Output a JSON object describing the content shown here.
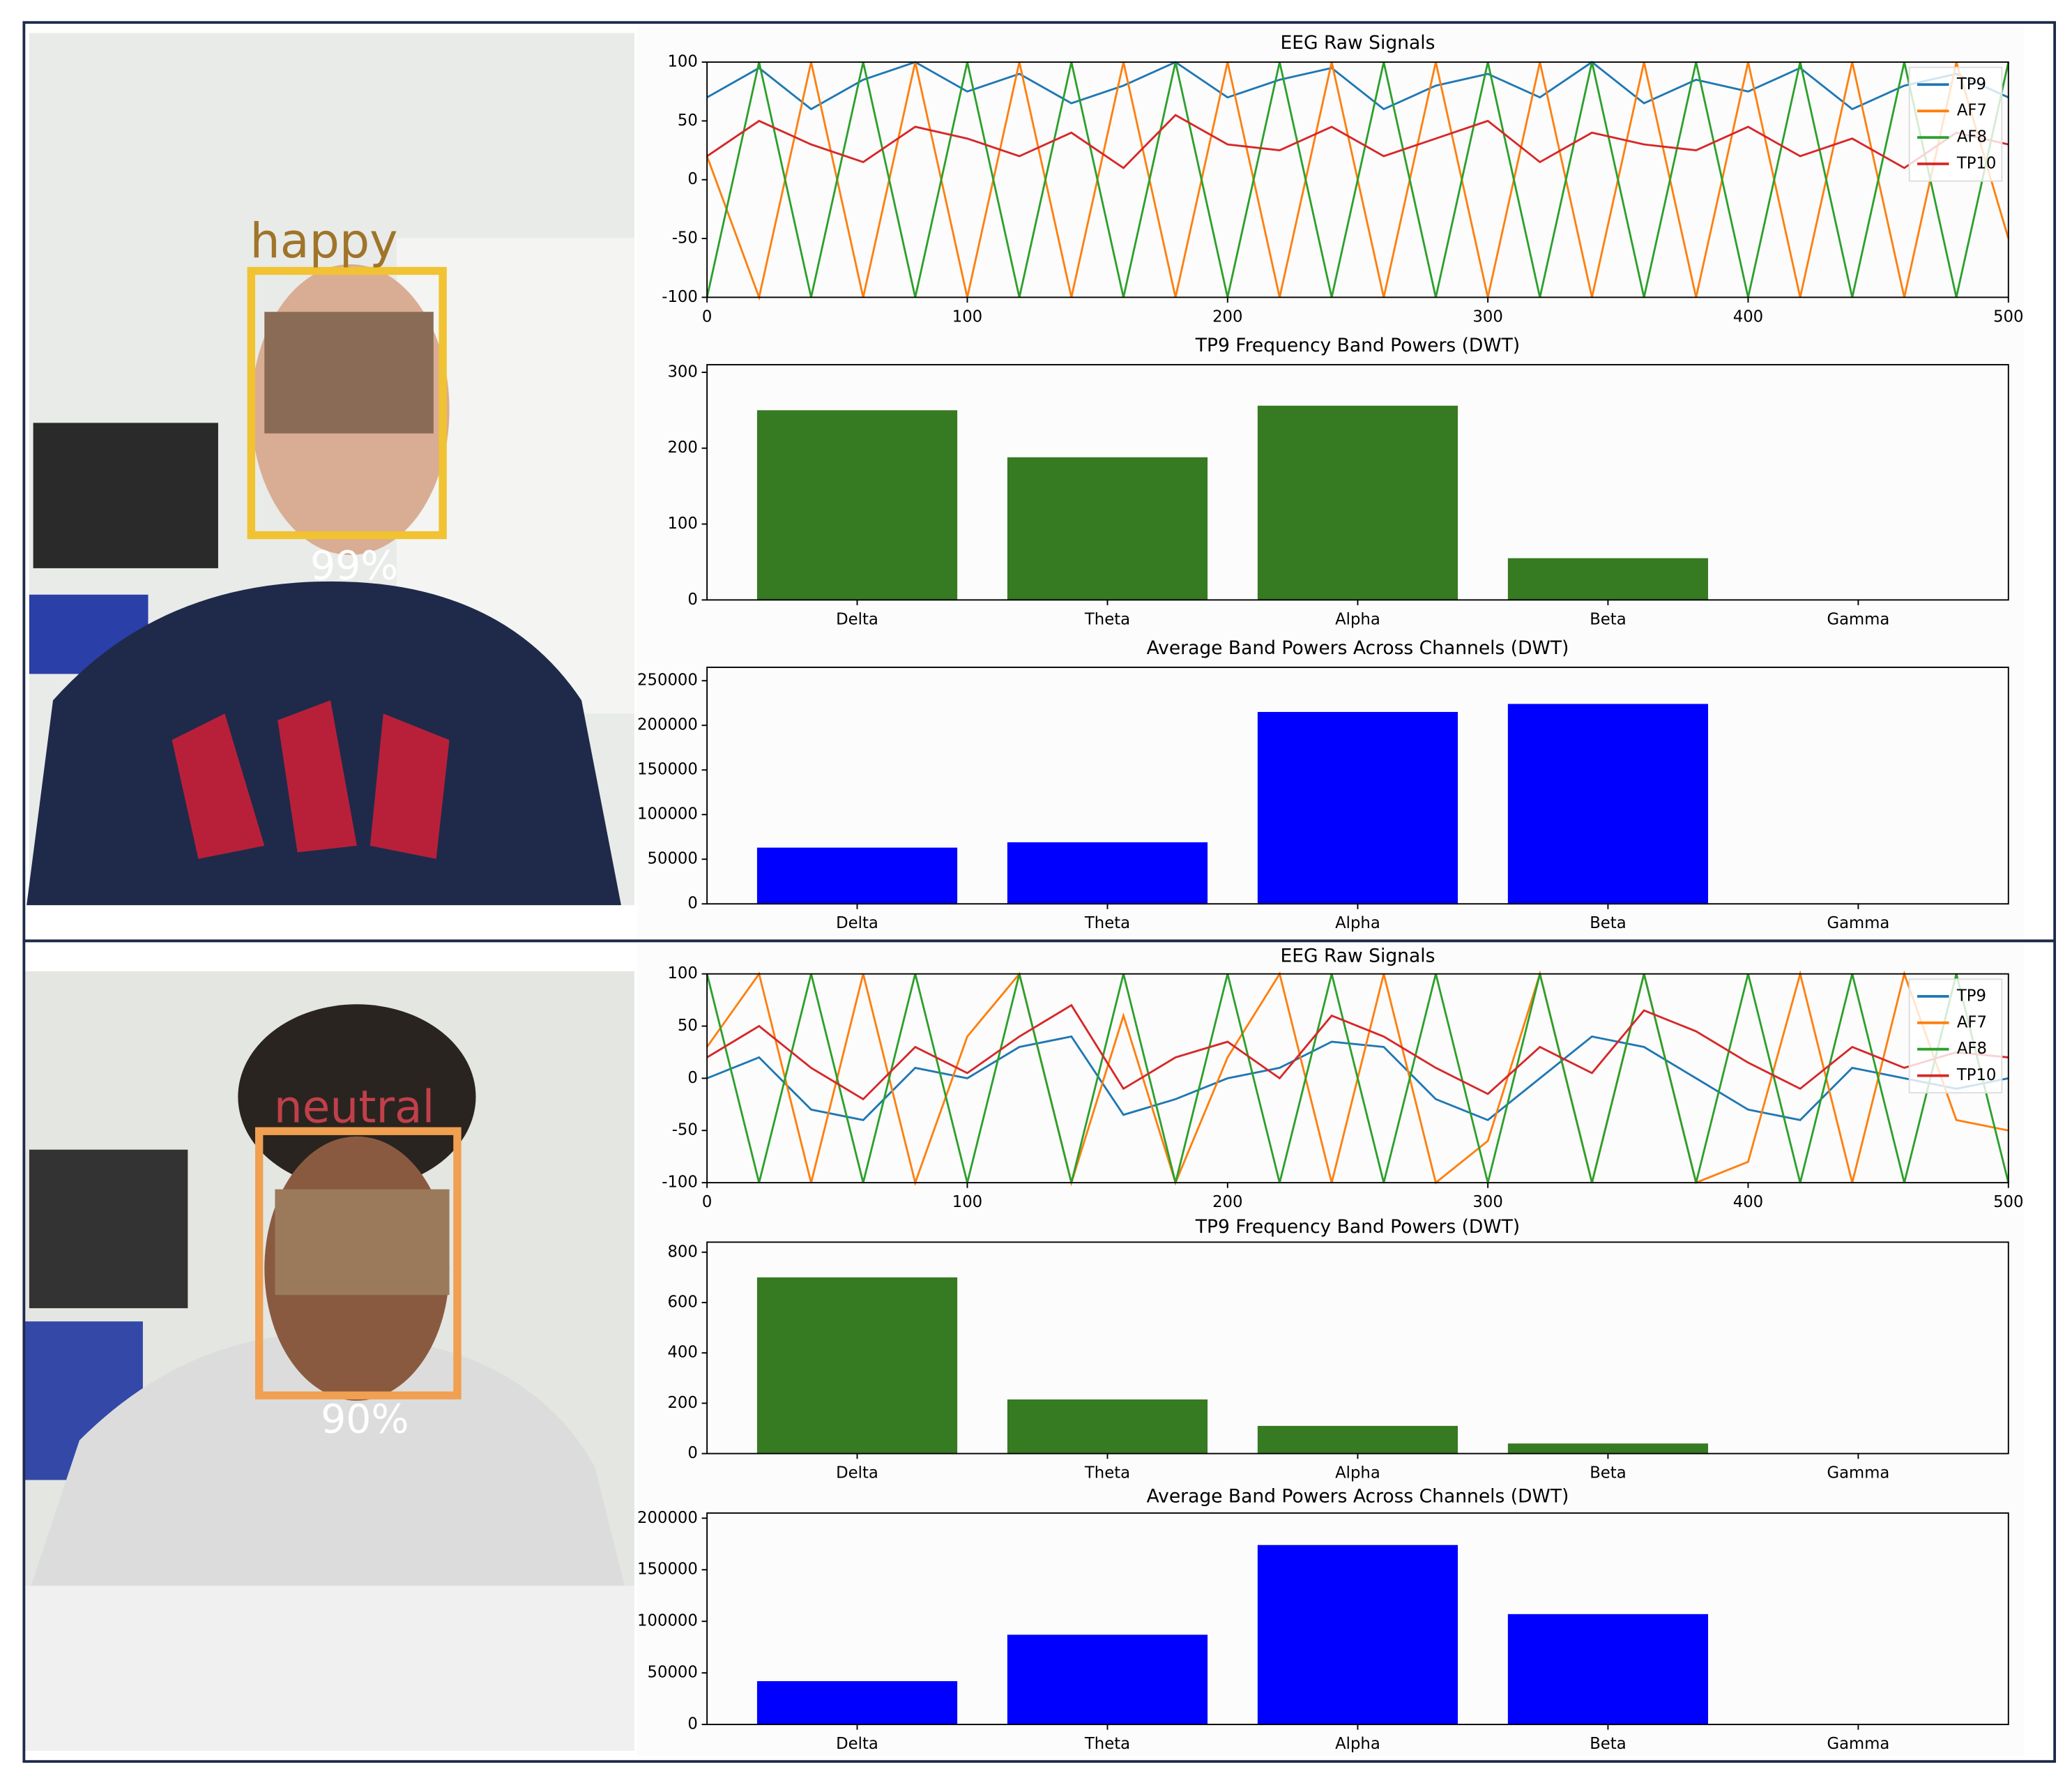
{
  "faces": [
    {
      "emotion": "happy",
      "confidence": "99%"
    },
    {
      "emotion": "neutral",
      "confidence": "90%"
    }
  ],
  "chart_data": [
    {
      "type": "line",
      "title": "EEG Raw Signals",
      "legend": "upper right",
      "xlim": [
        0,
        500
      ],
      "xticks": [
        0,
        100,
        200,
        300,
        400,
        500
      ],
      "ylim": [
        -100,
        100
      ],
      "yticks": [
        -100,
        -50,
        0,
        50,
        100
      ],
      "x": [
        0,
        20,
        40,
        60,
        80,
        100,
        120,
        140,
        160,
        180,
        200,
        220,
        240,
        260,
        280,
        300,
        320,
        340,
        360,
        380,
        400,
        420,
        440,
        460,
        480,
        500
      ],
      "series": [
        {
          "name": "TP9",
          "color": "#1f77b4",
          "values": [
            70,
            95,
            60,
            85,
            100,
            75,
            90,
            65,
            80,
            100,
            70,
            85,
            95,
            60,
            80,
            90,
            70,
            100,
            65,
            85,
            75,
            95,
            60,
            80,
            90,
            70
          ]
        },
        {
          "name": "AF7",
          "color": "#ff7f0e",
          "values": [
            20,
            -100,
            100,
            -100,
            100,
            -100,
            100,
            -100,
            100,
            -100,
            100,
            -100,
            100,
            -100,
            100,
            -100,
            100,
            -100,
            100,
            -100,
            100,
            -100,
            100,
            -100,
            100,
            -50
          ]
        },
        {
          "name": "AF8",
          "color": "#2ca02c",
          "values": [
            -100,
            100,
            -100,
            100,
            -100,
            100,
            -100,
            100,
            -100,
            100,
            -100,
            100,
            -100,
            100,
            -100,
            100,
            -100,
            100,
            -100,
            100,
            -100,
            100,
            -100,
            100,
            -100,
            100
          ]
        },
        {
          "name": "TP10",
          "color": "#d62728",
          "values": [
            20,
            50,
            30,
            15,
            45,
            35,
            20,
            40,
            10,
            55,
            30,
            25,
            45,
            20,
            35,
            50,
            15,
            40,
            30,
            25,
            45,
            20,
            35,
            10,
            40,
            30
          ]
        }
      ]
    },
    {
      "type": "bar",
      "title": "TP9 Frequency Band Powers (DWT)",
      "color": "#367a22",
      "categories": [
        "Delta",
        "Theta",
        "Alpha",
        "Beta",
        "Gamma"
      ],
      "values": [
        250,
        188,
        256,
        55,
        0
      ],
      "ylim": [
        0,
        310
      ],
      "yticks": [
        0,
        100,
        200,
        300
      ]
    },
    {
      "type": "bar",
      "title": "Average Band Powers Across Channels (DWT)",
      "color": "#0000ff",
      "categories": [
        "Delta",
        "Theta",
        "Alpha",
        "Beta",
        "Gamma"
      ],
      "values": [
        63000,
        69000,
        215000,
        224000,
        0
      ],
      "ylim": [
        0,
        265000
      ],
      "yticks": [
        0,
        50000,
        100000,
        150000,
        200000,
        250000
      ]
    },
    {
      "type": "line",
      "title": "EEG Raw Signals",
      "legend": "upper right",
      "xlim": [
        0,
        500
      ],
      "xticks": [
        0,
        100,
        200,
        300,
        400,
        500
      ],
      "ylim": [
        -100,
        100
      ],
      "yticks": [
        -100,
        -50,
        0,
        50,
        100
      ],
      "x": [
        0,
        20,
        40,
        60,
        80,
        100,
        120,
        140,
        160,
        180,
        200,
        220,
        240,
        260,
        280,
        300,
        320,
        340,
        360,
        380,
        400,
        420,
        440,
        460,
        480,
        500
      ],
      "series": [
        {
          "name": "TP9",
          "color": "#1f77b4",
          "values": [
            0,
            20,
            -30,
            -40,
            10,
            0,
            30,
            40,
            -35,
            -20,
            0,
            10,
            35,
            30,
            -20,
            -40,
            0,
            40,
            30,
            0,
            -30,
            -40,
            10,
            0,
            -10,
            0
          ]
        },
        {
          "name": "AF7",
          "color": "#ff7f0e",
          "values": [
            30,
            100,
            -100,
            100,
            -100,
            40,
            100,
            -100,
            60,
            -100,
            20,
            100,
            -100,
            100,
            -100,
            -60,
            100,
            -100,
            100,
            -100,
            -80,
            100,
            -100,
            100,
            -40,
            -50
          ]
        },
        {
          "name": "AF8",
          "color": "#2ca02c",
          "values": [
            100,
            -100,
            100,
            -100,
            100,
            -100,
            100,
            -100,
            100,
            -100,
            100,
            -100,
            100,
            -100,
            100,
            -100,
            100,
            -100,
            100,
            -100,
            100,
            -100,
            100,
            -100,
            100,
            -100
          ]
        },
        {
          "name": "TP10",
          "color": "#d62728",
          "values": [
            20,
            50,
            10,
            -20,
            30,
            5,
            40,
            70,
            -10,
            20,
            35,
            0,
            60,
            40,
            10,
            -15,
            30,
            5,
            65,
            45,
            15,
            -10,
            30,
            10,
            25,
            20
          ]
        }
      ]
    },
    {
      "type": "bar",
      "title": "TP9 Frequency Band Powers (DWT)",
      "color": "#367a22",
      "categories": [
        "Delta",
        "Theta",
        "Alpha",
        "Beta",
        "Gamma"
      ],
      "values": [
        700,
        215,
        110,
        40,
        0
      ],
      "ylim": [
        0,
        840
      ],
      "yticks": [
        0,
        200,
        400,
        600,
        800
      ]
    },
    {
      "type": "bar",
      "title": "Average Band Powers Across Channels (DWT)",
      "color": "#0000ff",
      "categories": [
        "Delta",
        "Theta",
        "Alpha",
        "Beta",
        "Gamma"
      ],
      "values": [
        42000,
        87000,
        174000,
        107000,
        0
      ],
      "ylim": [
        0,
        205000
      ],
      "yticks": [
        0,
        50000,
        100000,
        150000,
        200000
      ]
    }
  ]
}
